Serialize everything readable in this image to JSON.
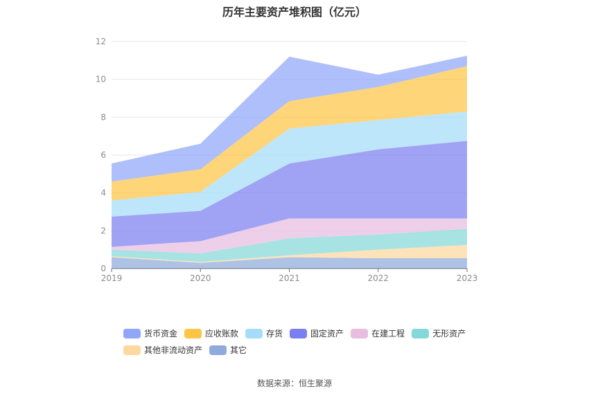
{
  "chart_data": {
    "type": "area",
    "stacked": true,
    "title": "历年主要资产堆积图（亿元）",
    "x": [
      "2019",
      "2020",
      "2021",
      "2022",
      "2023"
    ],
    "ylim": [
      0,
      12
    ],
    "yticks": [
      0,
      2,
      4,
      6,
      8,
      10,
      12
    ],
    "grid": true,
    "legend_position": "bottom",
    "series": [
      {
        "name": "其它",
        "color": "#8faadc",
        "values": [
          0.6,
          0.3,
          0.6,
          0.55,
          0.55
        ]
      },
      {
        "name": "其他非流动资产",
        "color": "#fdd8a0",
        "values": [
          0.05,
          0.05,
          0.1,
          0.45,
          0.7
        ]
      },
      {
        "name": "无形资产",
        "color": "#85d8d8",
        "values": [
          0.35,
          0.45,
          0.9,
          0.8,
          0.85
        ]
      },
      {
        "name": "在建工程",
        "color": "#e8bde0",
        "values": [
          0.15,
          0.65,
          1.05,
          0.85,
          0.55
        ]
      },
      {
        "name": "固定资产",
        "color": "#7b7ef0",
        "values": [
          1.6,
          1.6,
          2.9,
          3.65,
          4.1
        ]
      },
      {
        "name": "存货",
        "color": "#a5dcfa",
        "values": [
          0.85,
          1.0,
          1.85,
          1.55,
          1.55
        ]
      },
      {
        "name": "应收账款",
        "color": "#fdc545",
        "values": [
          1.0,
          1.2,
          1.45,
          1.75,
          2.4
        ]
      },
      {
        "name": "货币资金",
        "color": "#8fa6fa",
        "values": [
          0.95,
          1.35,
          2.35,
          0.65,
          0.55
        ]
      }
    ],
    "legend_order": [
      "货币资金",
      "应收账款",
      "存货",
      "固定资产",
      "在建工程",
      "无形资产",
      "其他非流动资产",
      "其它"
    ],
    "source": "数据来源：恒生聚源"
  }
}
